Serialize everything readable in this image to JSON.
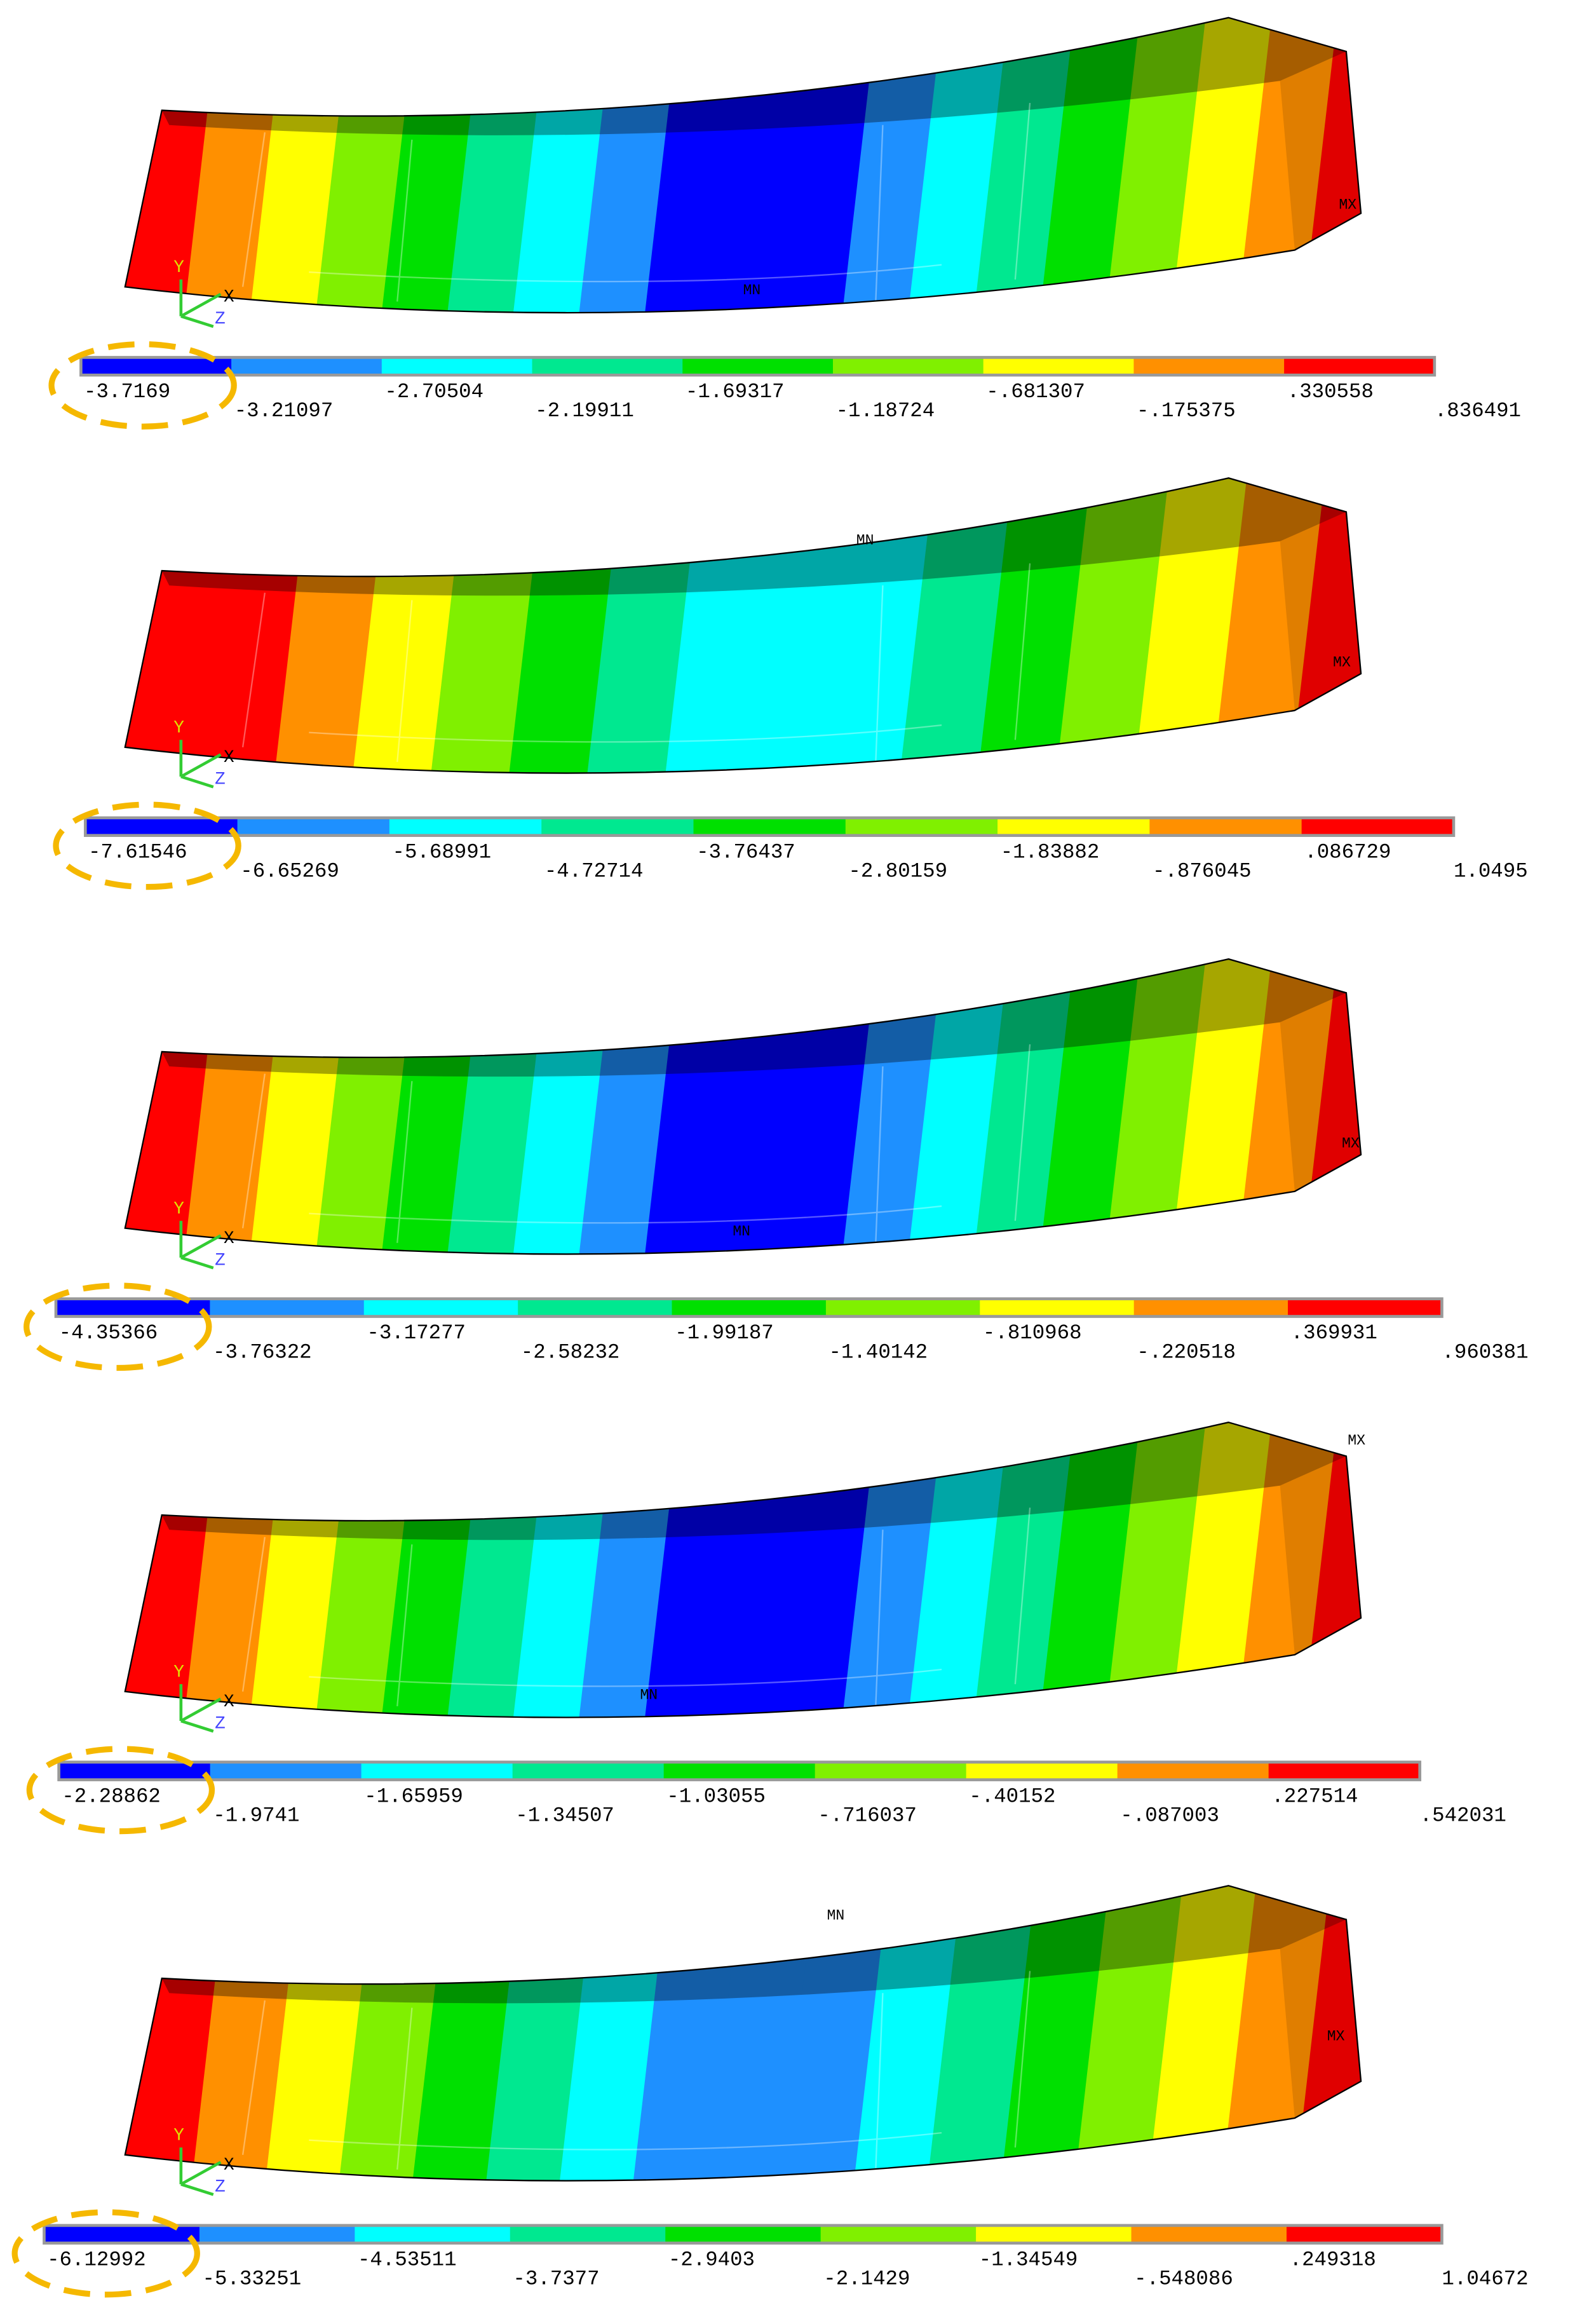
{
  "panels": [
    {
      "legend": [
        "-3.7169",
        "-3.21097",
        "-2.70504",
        "-2.19911",
        "-1.69317",
        "-1.18724",
        "-.681307",
        "-.175375",
        ".330558",
        ".836491"
      ],
      "min_marker": "MN",
      "max_marker": "MX",
      "axes": [
        "Y",
        "X",
        "Z"
      ]
    },
    {
      "legend": [
        "-7.61546",
        "-6.65269",
        "-5.68991",
        "-4.72714",
        "-3.76437",
        "-2.80159",
        "-1.83882",
        "-.876045",
        ".086729",
        "1.0495"
      ],
      "min_marker": "MN",
      "max_marker": "MX",
      "axes": [
        "Y",
        "X",
        "Z"
      ]
    },
    {
      "legend": [
        "-4.35366",
        "-3.76322",
        "-3.17277",
        "-2.58232",
        "-1.99187",
        "-1.40142",
        "-.810968",
        "-.220518",
        ".369931",
        ".960381"
      ],
      "min_marker": "MN",
      "max_marker": "MX",
      "axes": [
        "Y",
        "X",
        "Z"
      ]
    },
    {
      "legend": [
        "-2.28862",
        "-1.9741",
        "-1.65959",
        "-1.34507",
        "-1.03055",
        "-.716037",
        "-.40152",
        "-.087003",
        ".227514",
        ".542031"
      ],
      "min_marker": "MN",
      "max_marker": "MX",
      "axes": [
        "Y",
        "X",
        "Z"
      ]
    },
    {
      "legend": [
        "-6.12992",
        "-5.33251",
        "-4.53511",
        "-3.7377",
        "-2.9403",
        "-2.1429",
        "-1.34549",
        "-.548086",
        ".249318",
        "1.04672"
      ],
      "min_marker": "MN",
      "max_marker": "MX",
      "axes": [
        "Y",
        "X",
        "Z"
      ]
    }
  ]
}
